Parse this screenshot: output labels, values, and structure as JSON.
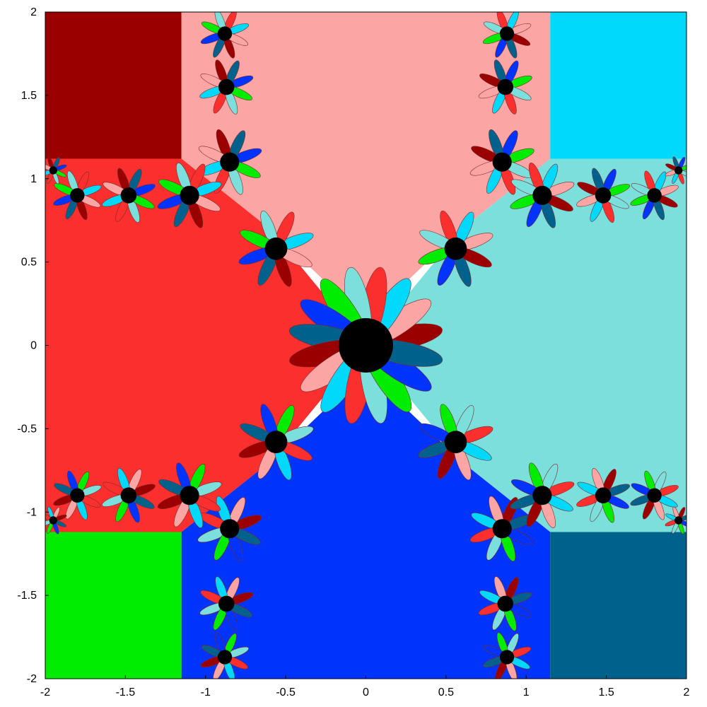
{
  "chart_data": {
    "type": "heatmap",
    "title": "",
    "xlabel": "",
    "ylabel": "",
    "xlim": [
      -2,
      2
    ],
    "ylim": [
      -2,
      2
    ],
    "grid": false,
    "x_ticks": [
      "-2",
      "-1.5",
      "-1",
      "-0.5",
      "0",
      "0.5",
      "1",
      "1.5",
      "2"
    ],
    "y_ticks": [
      "2",
      "1.5",
      "1",
      "0.5",
      "0",
      "-0.5",
      "-1",
      "-1.5",
      "-2"
    ],
    "x_tick_values": [
      -2,
      -1.5,
      -1,
      -0.5,
      0,
      0.5,
      1,
      1.5,
      2
    ],
    "y_tick_values": [
      2,
      1.5,
      1,
      0.5,
      0,
      -0.5,
      -1,
      -1.5,
      -2
    ],
    "description_of_data": "complex-plane basin-of-attraction fractal with 8 attractor basins around a central black region",
    "basins": [
      {
        "region": "upper-left corner",
        "color": "#9a0000"
      },
      {
        "region": "top",
        "color": "#fca5a5"
      },
      {
        "region": "upper-right corner",
        "color": "#00d8fc"
      },
      {
        "region": "left",
        "color": "#fc2f2f"
      },
      {
        "region": "right",
        "color": "#7be0dc"
      },
      {
        "region": "lower-left corner",
        "color": "#00ec00"
      },
      {
        "region": "bottom",
        "color": "#0033fc"
      },
      {
        "region": "lower-right corner",
        "color": "#00628c"
      }
    ],
    "boundary_color": "#000000",
    "centers": [
      {
        "x": 0,
        "y": 0,
        "r": 0.17
      },
      {
        "x": 0.56,
        "y": 0.58,
        "r": 0.07
      },
      {
        "x": -0.56,
        "y": 0.58,
        "r": 0.07
      },
      {
        "x": 0.56,
        "y": -0.58,
        "r": 0.07
      },
      {
        "x": -0.56,
        "y": -0.58,
        "r": 0.07
      },
      {
        "x": 0.85,
        "y": 1.1,
        "r": 0.06
      },
      {
        "x": -0.85,
        "y": 1.1,
        "r": 0.06
      },
      {
        "x": 0.85,
        "y": -1.1,
        "r": 0.06
      },
      {
        "x": -0.85,
        "y": -1.1,
        "r": 0.06
      },
      {
        "x": 1.1,
        "y": 0.9,
        "r": 0.06
      },
      {
        "x": -1.1,
        "y": 0.9,
        "r": 0.06
      },
      {
        "x": 1.1,
        "y": -0.9,
        "r": 0.06
      },
      {
        "x": -1.1,
        "y": -0.9,
        "r": 0.06
      },
      {
        "x": 1.48,
        "y": 0.9,
        "r": 0.05
      },
      {
        "x": -1.48,
        "y": 0.9,
        "r": 0.05
      },
      {
        "x": 1.48,
        "y": -0.9,
        "r": 0.05
      },
      {
        "x": -1.48,
        "y": -0.9,
        "r": 0.05
      },
      {
        "x": 1.8,
        "y": 0.9,
        "r": 0.045
      },
      {
        "x": -1.8,
        "y": 0.9,
        "r": 0.045
      },
      {
        "x": 1.8,
        "y": -0.9,
        "r": 0.045
      },
      {
        "x": -1.8,
        "y": -0.9,
        "r": 0.045
      },
      {
        "x": 0.87,
        "y": 1.55,
        "r": 0.05
      },
      {
        "x": -0.87,
        "y": 1.55,
        "r": 0.05
      },
      {
        "x": 0.87,
        "y": -1.55,
        "r": 0.05
      },
      {
        "x": -0.87,
        "y": -1.55,
        "r": 0.05
      },
      {
        "x": 0.88,
        "y": 1.87,
        "r": 0.045
      },
      {
        "x": -0.88,
        "y": 1.87,
        "r": 0.045
      },
      {
        "x": 0.88,
        "y": -1.87,
        "r": 0.045
      },
      {
        "x": -0.88,
        "y": -1.87,
        "r": 0.045
      },
      {
        "x": 1.95,
        "y": 1.05,
        "r": 0.025
      },
      {
        "x": -1.95,
        "y": 1.05,
        "r": 0.025
      },
      {
        "x": 1.95,
        "y": -1.05,
        "r": 0.025
      },
      {
        "x": -1.95,
        "y": -1.05,
        "r": 0.025
      }
    ]
  }
}
